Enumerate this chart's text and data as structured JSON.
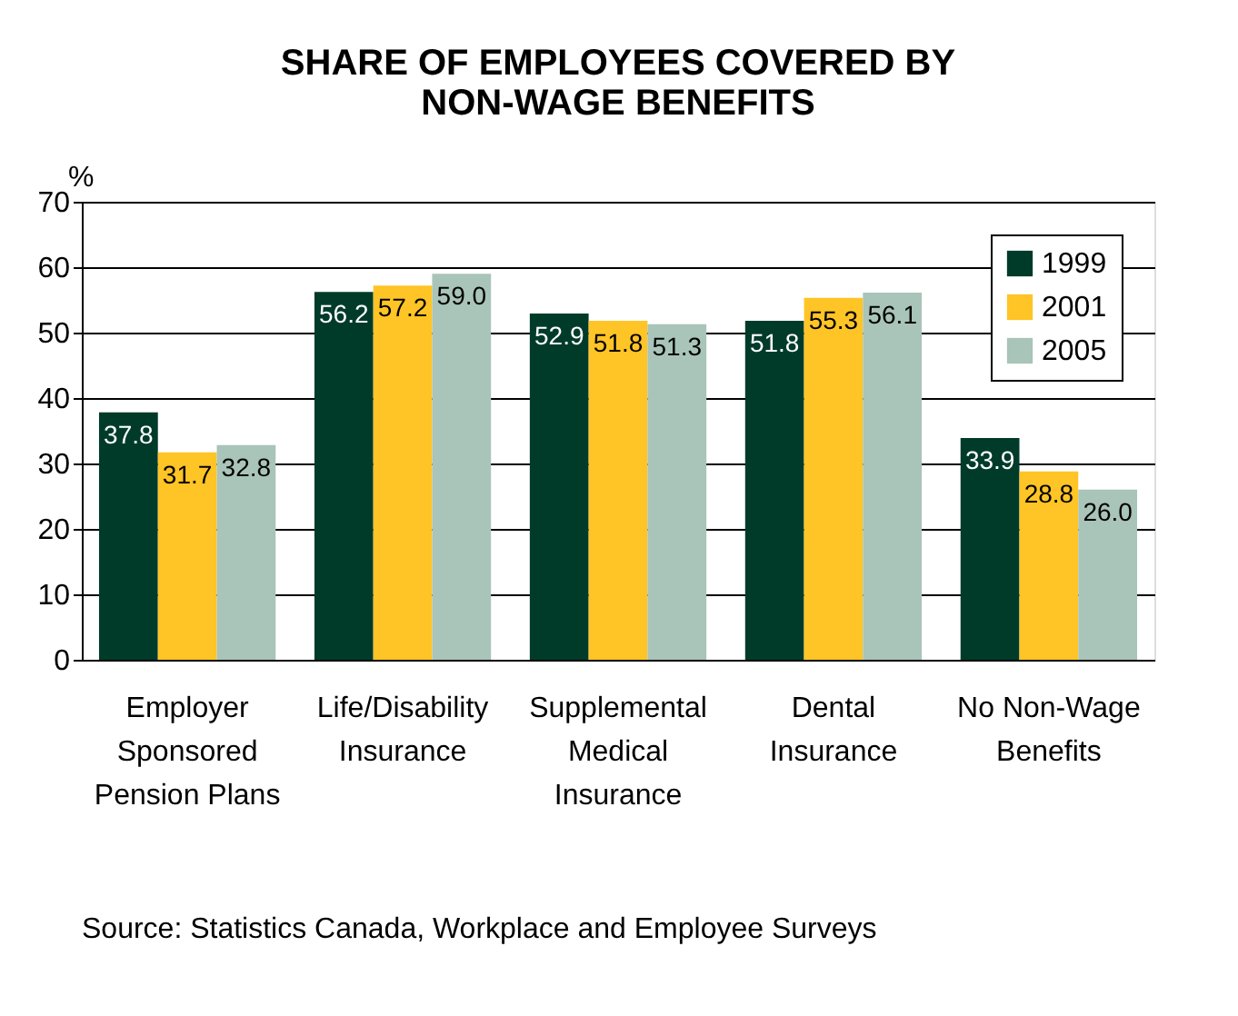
{
  "chart_data": {
    "type": "bar",
    "title": [
      "SHARE OF EMPLOYEES COVERED BY",
      "NON-WAGE BENEFITS"
    ],
    "ylabel": "%",
    "categories": [
      "Employer Sponsored Pension Plans",
      "Life/Disability Insurance",
      "Supplemental Medical Insurance",
      "Dental Insurance",
      "No Non-Wage Benefits"
    ],
    "series": [
      {
        "name": "1999",
        "color": "#003b2a",
        "values": [
          37.8,
          56.2,
          52.9,
          51.8,
          33.9
        ],
        "value_labels": [
          "37.8",
          "56.2",
          "52.9",
          "51.8",
          "33.9"
        ]
      },
      {
        "name": "2001",
        "color": "#ffc425",
        "values": [
          31.7,
          57.2,
          51.8,
          55.3,
          28.8
        ],
        "value_labels": [
          "31.7",
          "57.2",
          "51.8",
          "55.3",
          "28.8"
        ]
      },
      {
        "name": "2005",
        "color": "#a9c4b8",
        "values": [
          32.8,
          59.0,
          51.3,
          56.1,
          26.0
        ],
        "value_labels": [
          "32.8",
          "59.0",
          "51.3",
          "56.1",
          "26.0"
        ]
      }
    ],
    "ylim": [
      0,
      70
    ],
    "yticks": [
      0,
      10,
      20,
      30,
      40,
      50,
      60,
      70
    ],
    "grid": "y",
    "legend": "top right",
    "annotations": [
      "Source: Statistics Canada, Workplace and Employee Surveys"
    ]
  }
}
